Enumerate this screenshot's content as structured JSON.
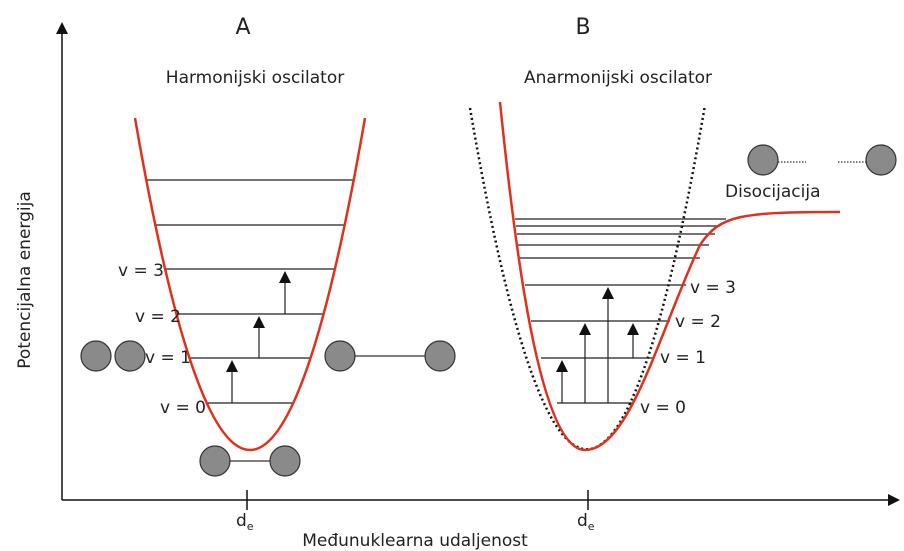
{
  "diagram": {
    "panels": [
      {
        "letter": "A",
        "title": "Harmonijski oscilator",
        "levels": [
          "v = 0",
          "v = 1",
          "v = 2",
          "v = 3"
        ]
      },
      {
        "letter": "B",
        "title": "Anarmonijski oscilator",
        "levels": [
          "v = 0",
          "v = 1",
          "v = 2",
          "v = 3"
        ],
        "dissociation": "Disocijacija"
      }
    ],
    "y_axis_label": "Potencijalna energija",
    "x_axis_label": "Međunuklearna udaljenost",
    "equilibrium_label": {
      "symbol": "d",
      "subscript": "e"
    }
  }
}
